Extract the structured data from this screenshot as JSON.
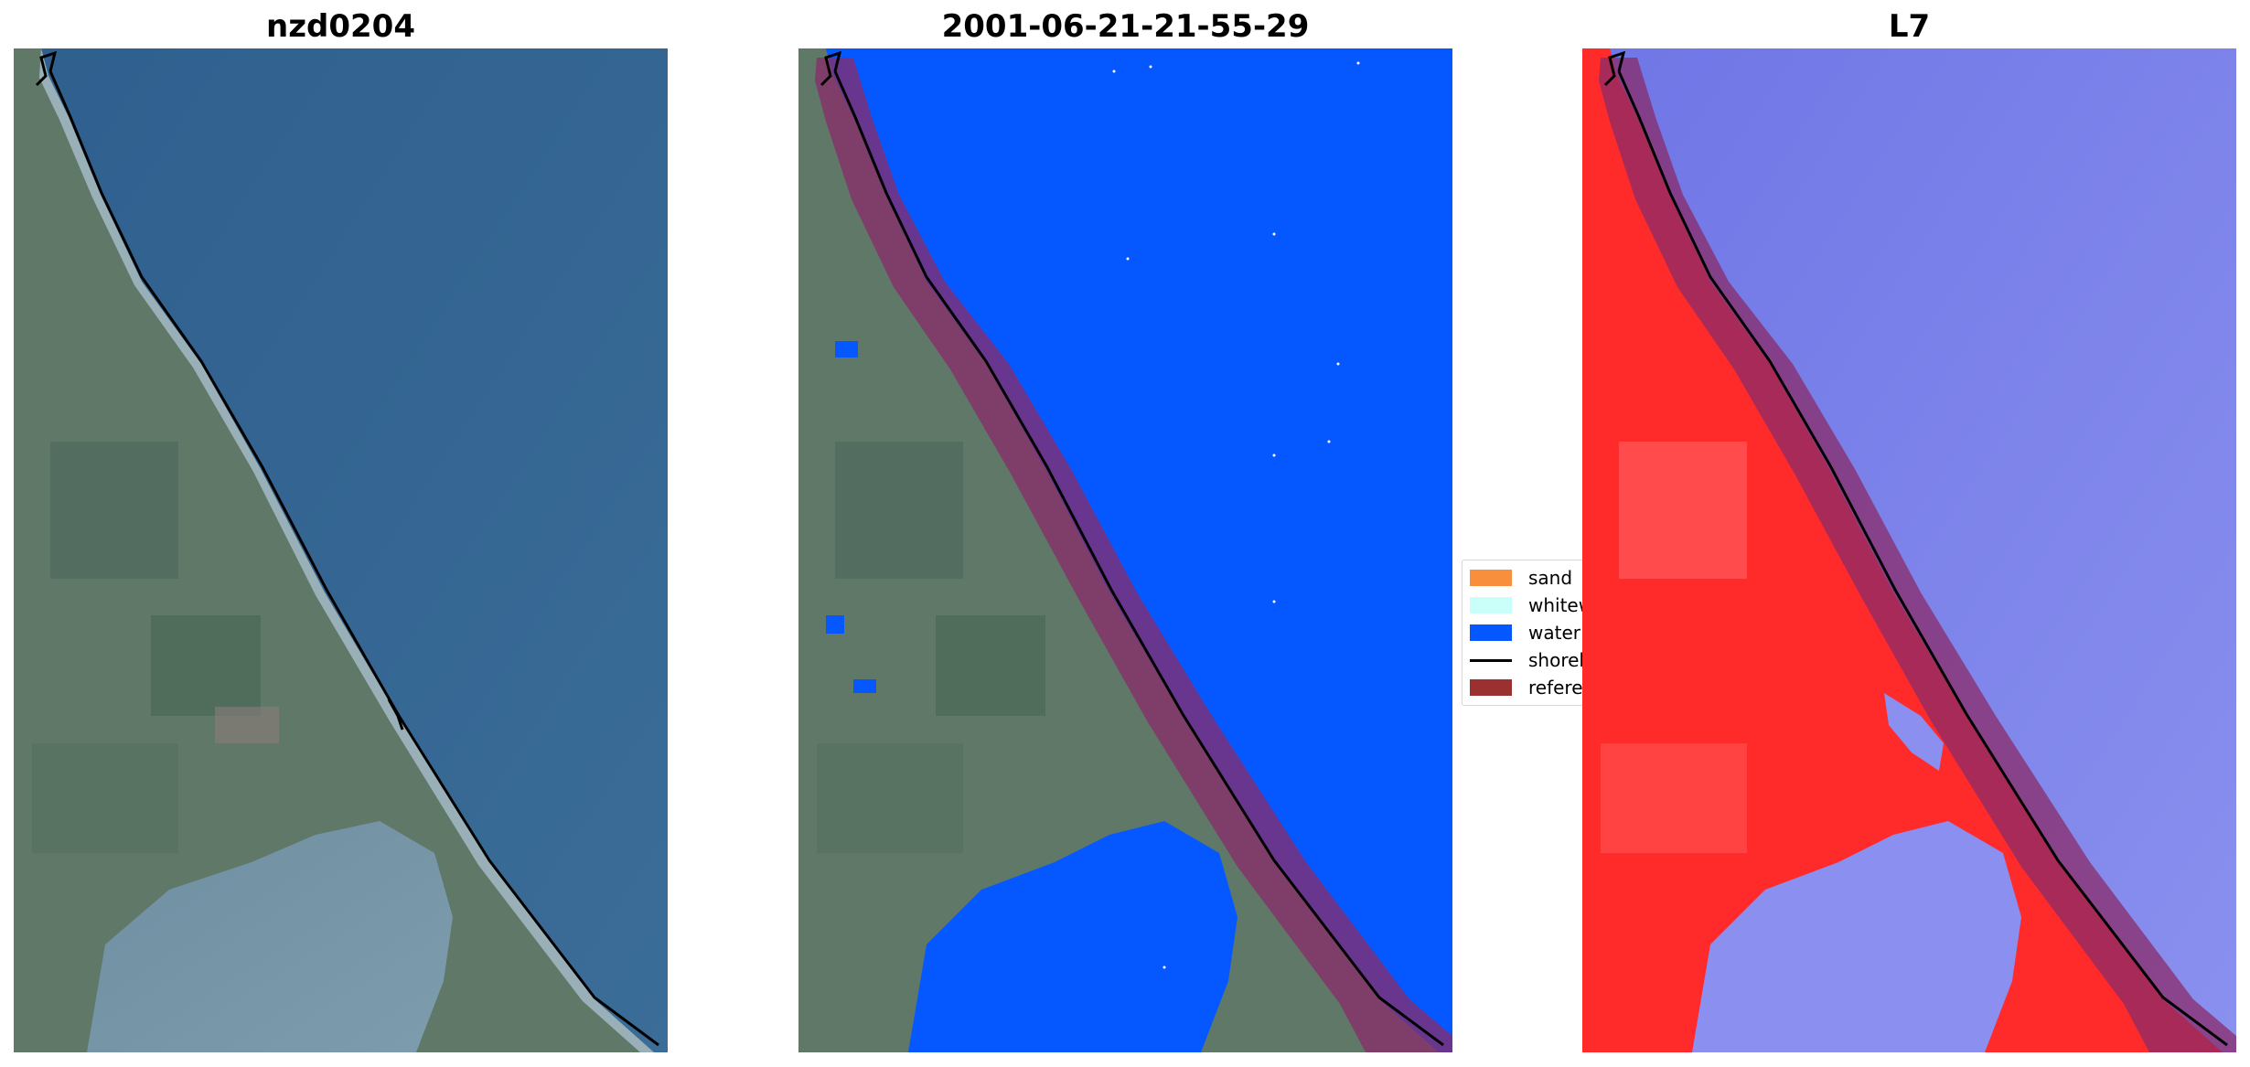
{
  "panels": [
    {
      "title": "nzd0204",
      "kind": "satellite-rgb"
    },
    {
      "title": "2001-06-21-21-55-29",
      "kind": "classified"
    },
    {
      "title": "L7",
      "kind": "water-index"
    }
  ],
  "legend": {
    "items": [
      {
        "label": "sand",
        "color": "#f78f3c",
        "type": "patch"
      },
      {
        "label": "whitewater",
        "color": "#cafff9",
        "type": "patch"
      },
      {
        "label": "water",
        "color": "#0558ff",
        "type": "patch"
      },
      {
        "label": "shoreline",
        "color": "#000000",
        "type": "line"
      },
      {
        "label": "reference shoreline buffer",
        "color": "#9a3030",
        "type": "patch"
      }
    ]
  },
  "colors": {
    "sea_rgb": "#3b6a96",
    "land_rgb": "#5f7a6a",
    "water_class": "#0558ff",
    "buffer": "#8a2b6a",
    "index_land": "#ff2020",
    "index_water": "#7a80ea",
    "shoreline": "#000000"
  }
}
